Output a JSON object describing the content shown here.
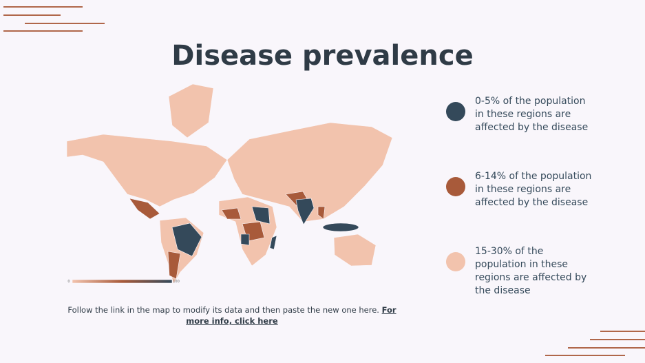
{
  "title": "Disease prevalence",
  "legend": [
    {
      "label": "0-5% of the population in these regions are affected by the disease"
    },
    {
      "label": "6-14% of the population in these regions are affected by the disease"
    },
    {
      "label": "15-30% of the population in these regions are affected by the disease"
    }
  ],
  "scale": {
    "min_label": "0",
    "max_label": "100"
  },
  "footer": {
    "text": "Follow the link in the map to modify its data and then paste the new one here.",
    "link": "For more info, click here"
  }
}
